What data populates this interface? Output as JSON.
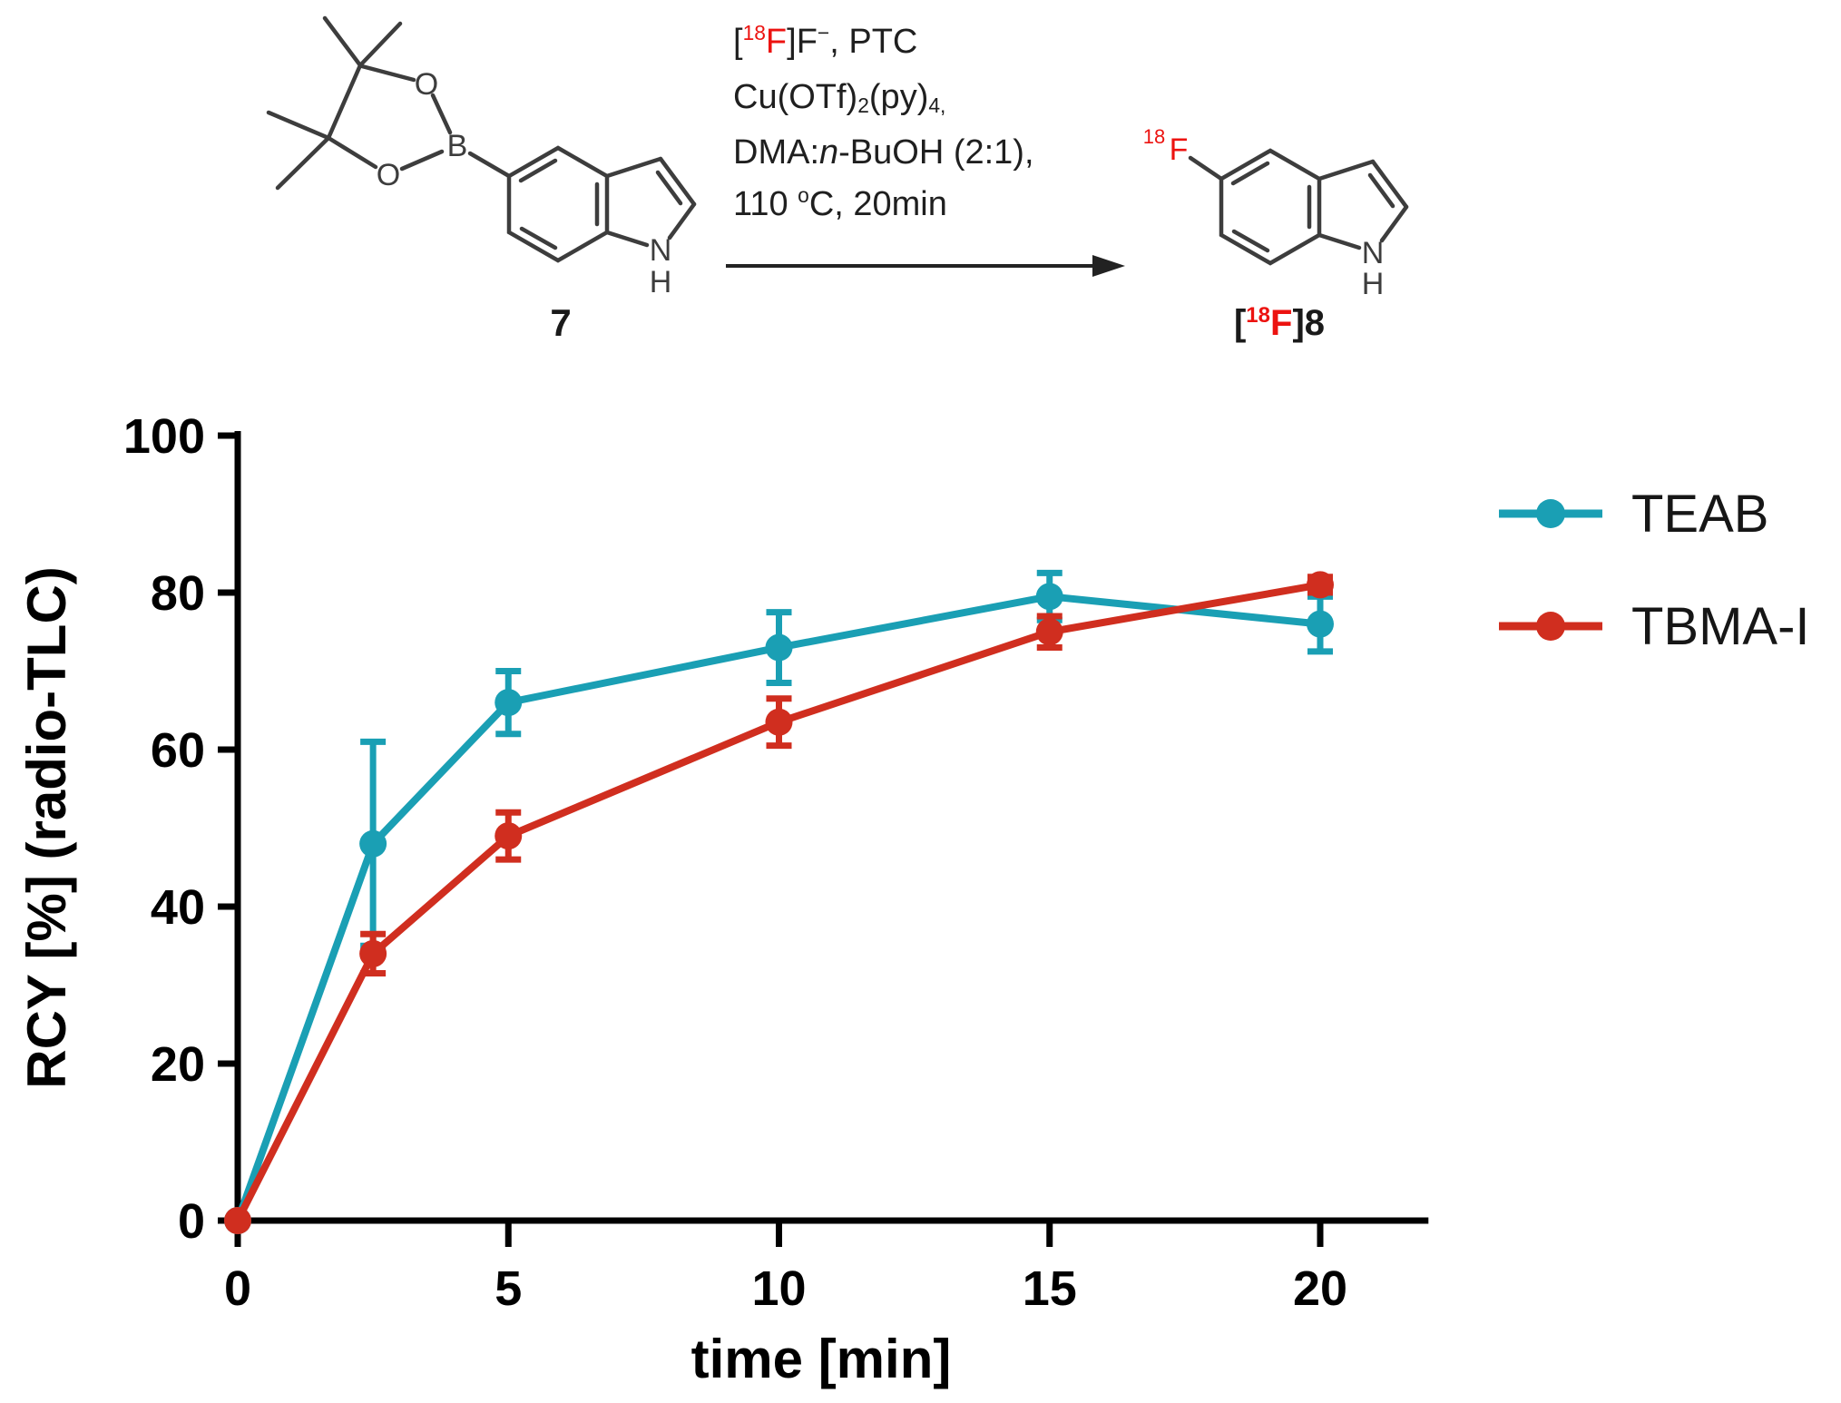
{
  "scheme": {
    "reactant_label": "7",
    "product_label": [
      {
        "t": "["
      },
      {
        "t": "18",
        "s": "sup red"
      },
      {
        "t": "F",
        "s": "red"
      },
      {
        "t": "]8"
      }
    ],
    "conditions_lines": [
      [
        {
          "t": "["
        },
        {
          "t": "18",
          "s": "sup red"
        },
        {
          "t": "F",
          "s": "red"
        },
        {
          "t": "]F"
        },
        {
          "t": "−",
          "s": "sup"
        },
        {
          "t": ", PTC"
        }
      ],
      [
        {
          "t": "Cu(OTf)"
        },
        {
          "t": "2",
          "s": "sub"
        },
        {
          "t": "(py)"
        },
        {
          "t": "4,",
          "s": "sub"
        }
      ],
      [
        {
          "t": "DMA:"
        },
        {
          "t": "n",
          "s": "i"
        },
        {
          "t": "-BuOH (2:1),"
        }
      ],
      [
        {
          "t": "110 "
        },
        {
          "t": "o",
          "s": "sup"
        },
        {
          "t": "C, 20min"
        }
      ]
    ],
    "atoms": {
      "O": "O",
      "B": "B",
      "N": "N",
      "H": "H",
      "F": "F"
    },
    "isotope": "18",
    "colors": {
      "structure": "#3d3d3d",
      "highlight": "#ec1310",
      "arrow": "#222222"
    }
  },
  "chart_data": {
    "type": "line",
    "x": [
      0,
      2.5,
      5,
      10,
      15,
      20
    ],
    "series": [
      {
        "name": "TEAB",
        "color": "#1A9FB4",
        "values": [
          0,
          48,
          66,
          73,
          79.5,
          76
        ],
        "errors": [
          0,
          13,
          4,
          4.5,
          3,
          3.5
        ]
      },
      {
        "name": "TBMA-I",
        "color": "#D02E1F",
        "values": [
          0,
          34,
          49,
          63.5,
          75,
          81
        ],
        "errors": [
          0,
          2.5,
          3,
          3,
          2,
          1
        ]
      }
    ],
    "xlabel": "time [min]",
    "ylabel": "RCY [%] (radio-TLC)",
    "xlim": [
      0,
      22
    ],
    "ylim": [
      0,
      100
    ],
    "xticks": [
      0,
      5,
      10,
      15,
      20
    ],
    "yticks": [
      0,
      20,
      40,
      60,
      80,
      100
    ],
    "grid": false,
    "legend_position": "right",
    "marker": "circle",
    "error_bars": "vertical-with-caps"
  }
}
